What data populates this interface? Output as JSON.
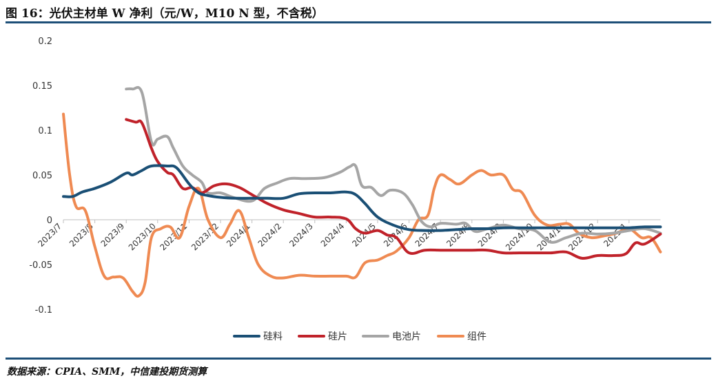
{
  "title": "图 16：光伏主材单 W 净利（元/W，M10 N 型，不含税）",
  "source": "数据来源：CPIA、SMM，中信建投期货测算",
  "chart_data": {
    "type": "line",
    "title": "图 16：光伏主材单 W 净利（元/W，M10 N 型，不含税）",
    "xlabel": "",
    "ylabel": "",
    "ylim": [
      -0.1,
      0.2
    ],
    "yticks": [
      -0.1,
      -0.05,
      0,
      0.05,
      0.1,
      0.15,
      0.2
    ],
    "ytick_labels": [
      "-0.1",
      "-0.05",
      "0",
      "0.05",
      "0.1",
      "0.15",
      "0.2"
    ],
    "xlim": [
      0,
      20
    ],
    "x_tick_labels": [
      "2023/7",
      "2023/8",
      "2023/9",
      "2023/10",
      "2023/11",
      "2023/12",
      "2024/1",
      "2024/2",
      "2024/3",
      "2024/4",
      "2024/5",
      "2024/6",
      "2024/7",
      "2024/8",
      "2024/9",
      "2024/10",
      "2024/11",
      "2024/12",
      "2025/1"
    ],
    "grid": false,
    "legend_position": "bottom",
    "series": [
      {
        "name": "硅料",
        "color": "#1a4f75",
        "points": [
          [
            0,
            0.026
          ],
          [
            0.3,
            0.026
          ],
          [
            0.6,
            0.031
          ],
          [
            1.0,
            0.035
          ],
          [
            1.5,
            0.042
          ],
          [
            2.0,
            0.052
          ],
          [
            2.2,
            0.05
          ],
          [
            2.5,
            0.055
          ],
          [
            2.8,
            0.06
          ],
          [
            3.3,
            0.06
          ],
          [
            3.6,
            0.058
          ],
          [
            4.0,
            0.04
          ],
          [
            4.3,
            0.03
          ],
          [
            4.6,
            0.027
          ],
          [
            5.0,
            0.025
          ],
          [
            5.5,
            0.024
          ],
          [
            6.0,
            0.024
          ],
          [
            6.5,
            0.024
          ],
          [
            7.0,
            0.024
          ],
          [
            7.5,
            0.029
          ],
          [
            8.0,
            0.03
          ],
          [
            8.5,
            0.03
          ],
          [
            9.0,
            0.031
          ],
          [
            9.3,
            0.028
          ],
          [
            9.6,
            0.018
          ],
          [
            10.0,
            0.003
          ],
          [
            10.5,
            -0.006
          ],
          [
            11.0,
            -0.011
          ],
          [
            11.5,
            -0.012
          ],
          [
            12.0,
            -0.012
          ],
          [
            12.5,
            -0.011
          ],
          [
            13.0,
            -0.01
          ],
          [
            13.5,
            -0.01
          ],
          [
            14.0,
            -0.009
          ],
          [
            14.5,
            -0.009
          ],
          [
            15.0,
            -0.009
          ],
          [
            15.5,
            -0.009
          ],
          [
            16.0,
            -0.009
          ],
          [
            16.5,
            -0.009
          ],
          [
            17.0,
            -0.009
          ],
          [
            17.5,
            -0.009
          ],
          [
            18.0,
            -0.009
          ],
          [
            18.5,
            -0.008
          ],
          [
            19.0,
            -0.008
          ]
        ]
      },
      {
        "name": "硅片",
        "color": "#c0222a",
        "points": [
          [
            2.0,
            0.112
          ],
          [
            2.3,
            0.109
          ],
          [
            2.5,
            0.108
          ],
          [
            2.8,
            0.08
          ],
          [
            3.0,
            0.065
          ],
          [
            3.3,
            0.053
          ],
          [
            3.5,
            0.05
          ],
          [
            3.8,
            0.035
          ],
          [
            4.1,
            0.036
          ],
          [
            4.4,
            0.03
          ],
          [
            4.8,
            0.038
          ],
          [
            5.2,
            0.04
          ],
          [
            5.6,
            0.036
          ],
          [
            6.0,
            0.028
          ],
          [
            6.5,
            0.018
          ],
          [
            7.0,
            0.011
          ],
          [
            7.5,
            0.007
          ],
          [
            8.0,
            0.003
          ],
          [
            8.5,
            0.003
          ],
          [
            9.0,
            0.001
          ],
          [
            9.3,
            -0.01
          ],
          [
            9.6,
            -0.015
          ],
          [
            10.0,
            -0.012
          ],
          [
            10.3,
            -0.017
          ],
          [
            10.6,
            -0.02
          ],
          [
            11.0,
            -0.037
          ],
          [
            11.5,
            -0.034
          ],
          [
            12.0,
            -0.034
          ],
          [
            12.5,
            -0.034
          ],
          [
            13.0,
            -0.034
          ],
          [
            13.5,
            -0.034
          ],
          [
            14.0,
            -0.037
          ],
          [
            14.5,
            -0.037
          ],
          [
            15.0,
            -0.037
          ],
          [
            15.5,
            -0.037
          ],
          [
            16.0,
            -0.036
          ],
          [
            16.5,
            -0.043
          ],
          [
            17.0,
            -0.04
          ],
          [
            17.5,
            -0.04
          ],
          [
            17.9,
            -0.038
          ],
          [
            18.2,
            -0.026
          ],
          [
            18.5,
            -0.027
          ],
          [
            19.0,
            -0.016
          ]
        ]
      },
      {
        "name": "电池片",
        "color": "#a5a5a5",
        "points": [
          [
            2.0,
            0.146
          ],
          [
            2.2,
            0.146
          ],
          [
            2.5,
            0.142
          ],
          [
            2.8,
            0.087
          ],
          [
            3.0,
            0.09
          ],
          [
            3.3,
            0.093
          ],
          [
            3.5,
            0.08
          ],
          [
            3.8,
            0.06
          ],
          [
            4.1,
            0.05
          ],
          [
            4.4,
            0.042
          ],
          [
            4.6,
            0.03
          ],
          [
            5.0,
            0.03
          ],
          [
            5.4,
            0.025
          ],
          [
            6.0,
            0.021
          ],
          [
            6.4,
            0.035
          ],
          [
            6.8,
            0.041
          ],
          [
            7.2,
            0.046
          ],
          [
            7.7,
            0.046
          ],
          [
            8.3,
            0.047
          ],
          [
            8.8,
            0.053
          ],
          [
            9.1,
            0.059
          ],
          [
            9.3,
            0.06
          ],
          [
            9.5,
            0.038
          ],
          [
            9.8,
            0.036
          ],
          [
            10.1,
            0.027
          ],
          [
            10.4,
            0.033
          ],
          [
            10.8,
            0.03
          ],
          [
            11.1,
            0.017
          ],
          [
            11.4,
            -0.002
          ],
          [
            11.7,
            -0.008
          ],
          [
            12.0,
            -0.004
          ],
          [
            12.5,
            -0.005
          ],
          [
            12.8,
            -0.004
          ],
          [
            13.1,
            -0.013
          ],
          [
            13.5,
            -0.01
          ],
          [
            14.0,
            -0.006
          ],
          [
            14.5,
            -0.01
          ],
          [
            15.0,
            -0.012
          ],
          [
            15.5,
            -0.025
          ],
          [
            16.0,
            -0.02
          ],
          [
            16.5,
            -0.015
          ],
          [
            17.0,
            -0.016
          ],
          [
            17.5,
            -0.015
          ],
          [
            18.0,
            -0.012
          ],
          [
            18.5,
            -0.01
          ],
          [
            19.0,
            -0.015
          ]
        ]
      },
      {
        "name": "组件",
        "color": "#ef8a52",
        "points": [
          [
            0,
            0.118
          ],
          [
            0.2,
            0.05
          ],
          [
            0.4,
            0.015
          ],
          [
            0.7,
            0.01
          ],
          [
            1.0,
            -0.03
          ],
          [
            1.3,
            -0.063
          ],
          [
            1.6,
            -0.064
          ],
          [
            1.9,
            -0.065
          ],
          [
            2.2,
            -0.08
          ],
          [
            2.4,
            -0.085
          ],
          [
            2.6,
            -0.07
          ],
          [
            2.8,
            -0.02
          ],
          [
            3.1,
            -0.01
          ],
          [
            3.4,
            -0.008
          ],
          [
            3.7,
            -0.02
          ],
          [
            4.0,
            0.015
          ],
          [
            4.3,
            0.035
          ],
          [
            4.6,
            0.0
          ],
          [
            5.0,
            -0.02
          ],
          [
            5.3,
            -0.005
          ],
          [
            5.6,
            0.01
          ],
          [
            5.9,
            -0.02
          ],
          [
            6.2,
            -0.05
          ],
          [
            6.6,
            -0.063
          ],
          [
            7.0,
            -0.065
          ],
          [
            7.5,
            -0.062
          ],
          [
            8.0,
            -0.063
          ],
          [
            8.5,
            -0.063
          ],
          [
            9.0,
            -0.063
          ],
          [
            9.3,
            -0.064
          ],
          [
            9.6,
            -0.048
          ],
          [
            10.0,
            -0.045
          ],
          [
            10.3,
            -0.04
          ],
          [
            10.6,
            -0.035
          ],
          [
            11.0,
            -0.02
          ],
          [
            11.3,
            0.0
          ],
          [
            11.6,
            0.005
          ],
          [
            11.8,
            0.035
          ],
          [
            12.0,
            0.05
          ],
          [
            12.3,
            0.045
          ],
          [
            12.6,
            0.04
          ],
          [
            13.0,
            0.05
          ],
          [
            13.3,
            0.055
          ],
          [
            13.6,
            0.05
          ],
          [
            14.0,
            0.05
          ],
          [
            14.3,
            0.034
          ],
          [
            14.6,
            0.03
          ],
          [
            15.0,
            0.005
          ],
          [
            15.4,
            -0.006
          ],
          [
            15.8,
            -0.005
          ],
          [
            16.1,
            -0.005
          ],
          [
            16.4,
            -0.015
          ],
          [
            16.8,
            -0.02
          ],
          [
            17.2,
            -0.018
          ],
          [
            17.6,
            -0.015
          ],
          [
            18.0,
            -0.01
          ],
          [
            18.4,
            -0.02
          ],
          [
            18.7,
            -0.02
          ],
          [
            19.0,
            -0.036
          ]
        ]
      }
    ]
  }
}
